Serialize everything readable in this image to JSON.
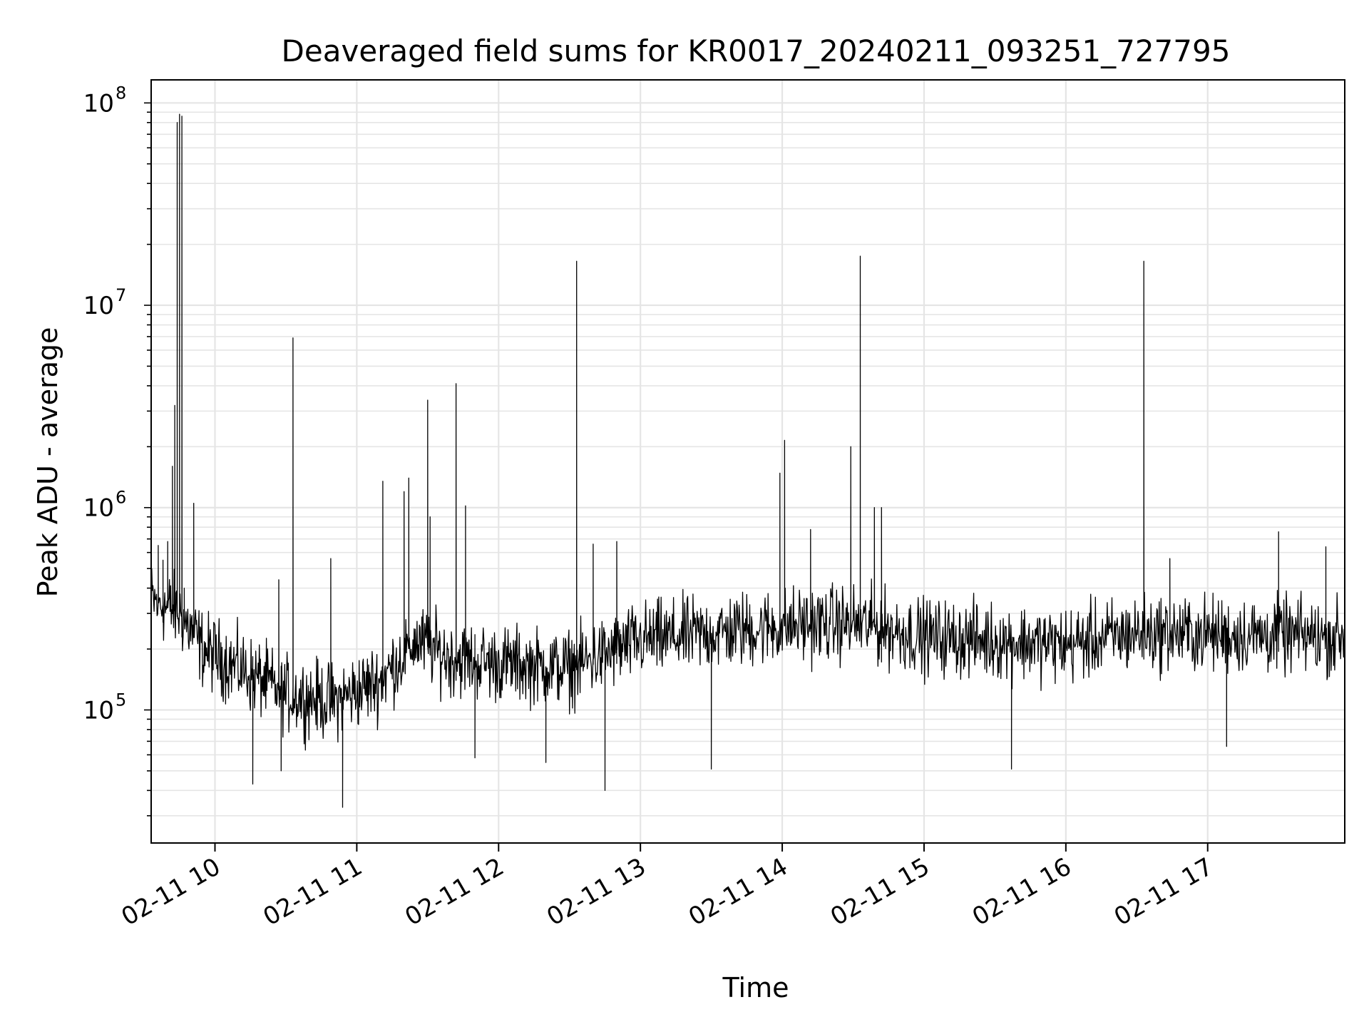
{
  "chart_data": {
    "type": "line",
    "title": "Deaveraged field sums for KR0017_20240211_093251_727795",
    "xlabel": "Time",
    "ylabel": "Peak ADU - average",
    "yscale": "log",
    "xlim": [
      "2024-02-11 09:33",
      "2024-02-11 17:58"
    ],
    "ylim": [
      22000,
      130000000
    ],
    "grid": true,
    "grid_color": "#e5e5e5",
    "line_color": "#000000",
    "x_ticks": [
      {
        "value": "2024-02-11 10:00",
        "label": "02-11 10"
      },
      {
        "value": "2024-02-11 11:00",
        "label": "02-11 11"
      },
      {
        "value": "2024-02-11 12:00",
        "label": "02-11 12"
      },
      {
        "value": "2024-02-11 13:00",
        "label": "02-11 13"
      },
      {
        "value": "2024-02-11 14:00",
        "label": "02-11 14"
      },
      {
        "value": "2024-02-11 15:00",
        "label": "02-11 15"
      },
      {
        "value": "2024-02-11 16:00",
        "label": "02-11 16"
      },
      {
        "value": "2024-02-11 17:00",
        "label": "02-11 17"
      }
    ],
    "y_ticks": [
      {
        "value": 100000,
        "base": "10",
        "exp": "5"
      },
      {
        "value": 1000000,
        "base": "10",
        "exp": "6"
      },
      {
        "value": 10000000,
        "base": "10",
        "exp": "7"
      },
      {
        "value": 100000000,
        "base": "10",
        "exp": "8"
      }
    ],
    "series": [
      {
        "baseline": [
          {
            "x": "2024-02-11 09:33",
            "y": 350000
          },
          {
            "x": "2024-02-11 09:45",
            "y": 300000
          },
          {
            "x": "2024-02-11 09:55",
            "y": 200000
          },
          {
            "x": "2024-02-11 10:15",
            "y": 150000
          },
          {
            "x": "2024-02-11 10:30",
            "y": 120000
          },
          {
            "x": "2024-02-11 10:50",
            "y": 110000
          },
          {
            "x": "2024-02-11 11:10",
            "y": 140000
          },
          {
            "x": "2024-02-11 11:25",
            "y": 220000
          },
          {
            "x": "2024-02-11 11:40",
            "y": 180000
          },
          {
            "x": "2024-02-11 12:00",
            "y": 170000
          },
          {
            "x": "2024-02-11 12:30",
            "y": 160000
          },
          {
            "x": "2024-02-11 13:00",
            "y": 220000
          },
          {
            "x": "2024-02-11 14:00",
            "y": 260000
          },
          {
            "x": "2024-02-11 14:30",
            "y": 270000
          },
          {
            "x": "2024-02-11 15:00",
            "y": 230000
          },
          {
            "x": "2024-02-11 16:00",
            "y": 210000
          },
          {
            "x": "2024-02-11 16:30",
            "y": 240000
          },
          {
            "x": "2024-02-11 17:58",
            "y": 230000
          }
        ],
        "spikes": [
          {
            "x": "2024-02-11 09:36",
            "y": 650000
          },
          {
            "x": "2024-02-11 09:38",
            "y": 550000
          },
          {
            "x": "2024-02-11 09:40",
            "y": 680000
          },
          {
            "x": "2024-02-11 09:42",
            "y": 1600000
          },
          {
            "x": "2024-02-11 09:43",
            "y": 3200000
          },
          {
            "x": "2024-02-11 09:44",
            "y": 80000000
          },
          {
            "x": "2024-02-11 09:45",
            "y": 88000000
          },
          {
            "x": "2024-02-11 09:46",
            "y": 86000000
          },
          {
            "x": "2024-02-11 09:47",
            "y": 400000
          },
          {
            "x": "2024-02-11 09:51",
            "y": 1050000
          },
          {
            "x": "2024-02-11 10:33",
            "y": 6900000
          },
          {
            "x": "2024-02-11 10:27",
            "y": 440000
          },
          {
            "x": "2024-02-11 10:49",
            "y": 560000
          },
          {
            "x": "2024-02-11 11:11",
            "y": 1350000
          },
          {
            "x": "2024-02-11 11:20",
            "y": 1200000
          },
          {
            "x": "2024-02-11 11:22",
            "y": 1400000
          },
          {
            "x": "2024-02-11 11:30",
            "y": 3400000
          },
          {
            "x": "2024-02-11 11:31",
            "y": 900000
          },
          {
            "x": "2024-02-11 11:42",
            "y": 4100000
          },
          {
            "x": "2024-02-11 11:46",
            "y": 1020000
          },
          {
            "x": "2024-02-11 12:33",
            "y": 16500000
          },
          {
            "x": "2024-02-11 12:40",
            "y": 660000
          },
          {
            "x": "2024-02-11 12:50",
            "y": 680000
          },
          {
            "x": "2024-02-11 13:59",
            "y": 1480000
          },
          {
            "x": "2024-02-11 14:01",
            "y": 2150000
          },
          {
            "x": "2024-02-11 14:12",
            "y": 780000
          },
          {
            "x": "2024-02-11 14:29",
            "y": 2000000
          },
          {
            "x": "2024-02-11 14:33",
            "y": 17500000
          },
          {
            "x": "2024-02-11 14:39",
            "y": 1000000
          },
          {
            "x": "2024-02-11 14:42",
            "y": 1000000
          },
          {
            "x": "2024-02-11 16:33",
            "y": 16500000
          },
          {
            "x": "2024-02-11 16:44",
            "y": 560000
          },
          {
            "x": "2024-02-11 17:30",
            "y": 760000
          },
          {
            "x": "2024-02-11 17:50",
            "y": 640000
          }
        ],
        "dips": [
          {
            "x": "2024-02-11 10:16",
            "y": 43000
          },
          {
            "x": "2024-02-11 10:28",
            "y": 50000
          },
          {
            "x": "2024-02-11 10:54",
            "y": 33000
          },
          {
            "x": "2024-02-11 11:50",
            "y": 58000
          },
          {
            "x": "2024-02-11 12:20",
            "y": 55000
          },
          {
            "x": "2024-02-11 12:45",
            "y": 40000
          },
          {
            "x": "2024-02-11 13:30",
            "y": 51000
          },
          {
            "x": "2024-02-11 15:37",
            "y": 51000
          },
          {
            "x": "2024-02-11 17:08",
            "y": 66000
          }
        ],
        "noise_factor": 1.7
      }
    ]
  }
}
